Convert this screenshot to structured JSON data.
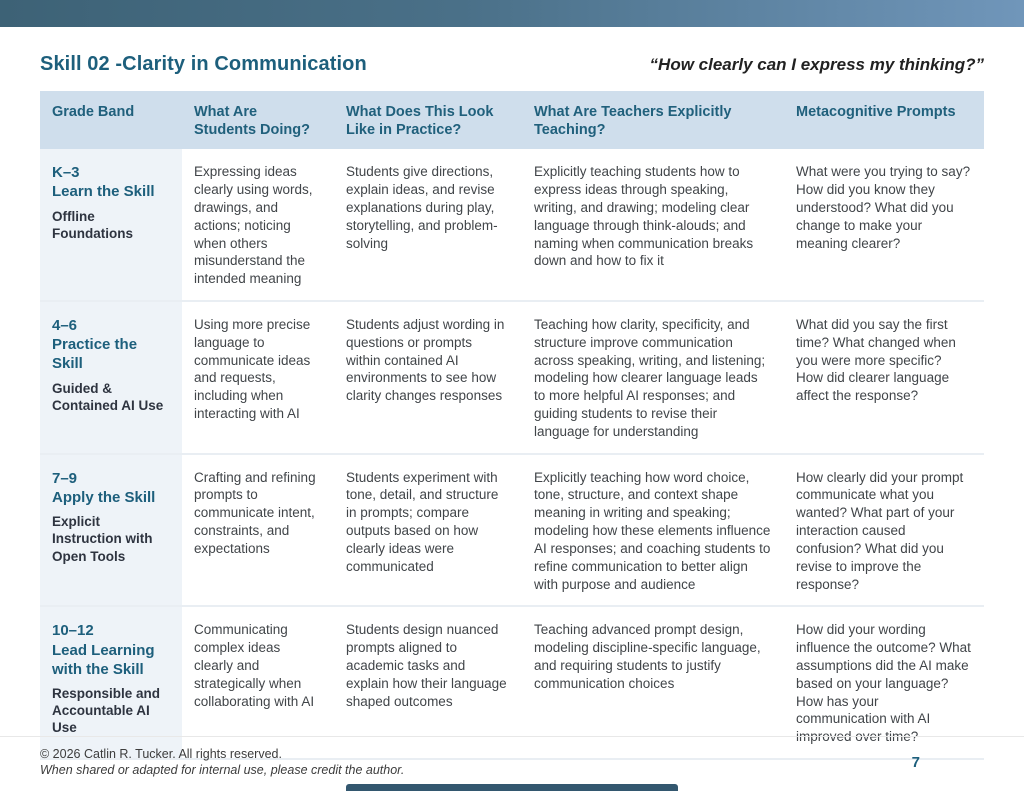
{
  "page": {
    "title": "Skill 02 -Clarity in Communication",
    "quote": "“How clearly can I express my thinking?”",
    "page_number": "7",
    "footer_line1": "© 2026 Catlin R. Tucker. All rights reserved.",
    "footer_line2": "When shared or adapted for internal use, please credit the author."
  },
  "colors": {
    "accent_teal": "#1d5f7c",
    "header_bg": "#cfdeec",
    "grade_cell_bg": "#eef3f8",
    "top_bar_gradient_left": "#3d6276",
    "top_bar_gradient_right": "#7096ba",
    "body_text": "#414549"
  },
  "table": {
    "headers": [
      "Grade Band",
      "What Are Students Doing?",
      "What Does This Look Like in Practice?",
      "What Are Teachers Explicitly Teaching?",
      "Metacognitive Prompts"
    ],
    "rows": [
      {
        "grade": "K–3",
        "skill": "Learn the Skill",
        "subtitle": "Offline Foundations",
        "doing": "Expressing ideas clearly using words, drawings, and actions; noticing when others misunderstand the intended meaning",
        "practice": "Students give directions, explain ideas, and revise explanations during play, storytelling, and problem-solving",
        "teaching": "Explicitly teaching students how to express ideas through speaking, writing, and drawing; modeling clear language through think-alouds; and naming when communication breaks down and how to fix it",
        "prompts": "What were you trying to say? How did you know they understood? What did you change to make your meaning clearer?"
      },
      {
        "grade": "4–6",
        "skill": "Practice the Skill",
        "subtitle": "Guided & Contained AI Use",
        "doing": "Using more precise language to communicate ideas and requests, including when interacting with AI",
        "practice": "Students adjust wording in questions or prompts within contained AI environments to see how clarity changes responses",
        "teaching": "Teaching how clarity, specificity, and structure improve communication across speaking, writing, and listening; modeling how clearer language leads to more helpful AI responses; and guiding students to revise their language for understanding",
        "prompts": "What did you say the first time? What changed when you were more specific? How did clearer language affect the response?"
      },
      {
        "grade": "7–9",
        "skill": "Apply the Skill",
        "subtitle": "Explicit Instruction with Open Tools",
        "doing": "Crafting and refining prompts to communicate intent, constraints, and expectations",
        "practice": "Students experiment with tone, detail, and structure in prompts; compare outputs based on how clearly ideas were communicated",
        "teaching": "Explicitly teaching how word choice, tone, structure, and context shape meaning in writing and speaking; modeling how these elements influence AI responses; and coaching students to refine communication to better align with purpose and audience",
        "prompts": "How clearly did your prompt communicate what you wanted? What part of your interaction caused confusion? What did you revise to improve the response?"
      },
      {
        "grade": "10–12",
        "skill": "Lead Learning with the Skill",
        "subtitle": "Responsible and Accountable AI Use",
        "doing": "Communicating complex ideas clearly and strategically when collaborating with AI",
        "practice": "Students design nuanced prompts aligned to academic tasks and explain how their language shaped outcomes",
        "teaching": "Teaching advanced prompt design, modeling discipline-specific language, and requiring students to justify communication choices",
        "prompts": "How did your wording influence the outcome? What assumptions did the AI make based on your language? How has your communication with AI improved over time?"
      }
    ]
  }
}
